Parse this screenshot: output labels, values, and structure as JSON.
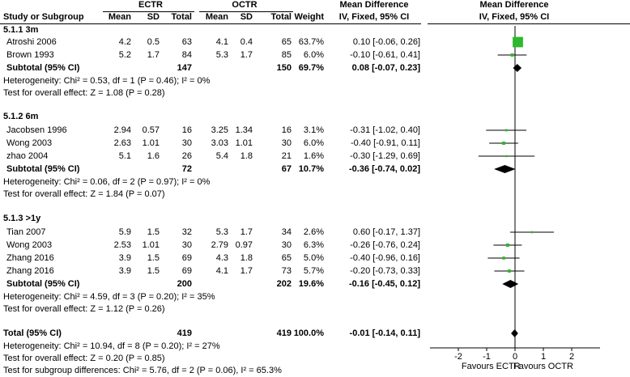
{
  "header": {
    "group1": "ECTR",
    "group2": "OCTR",
    "md_title": "Mean Difference",
    "plot_title": "Mean Difference",
    "col_study": "Study or Subgroup",
    "col_mean1": "Mean",
    "col_sd1": "SD",
    "col_total1": "Total",
    "col_mean2": "Mean",
    "col_sd2": "SD",
    "col_total2": "Total",
    "col_weight": "Weight",
    "col_ci": "IV, Fixed, 95% CI",
    "plot_ci": "IV, Fixed, 95% CI"
  },
  "groups": [
    {
      "title": "5.1.1 3m",
      "studies": [
        {
          "name": "Atroshi 2006",
          "m1": "4.2",
          "sd1": "0.5",
          "n1": "63",
          "m2": "4.1",
          "sd2": "0.4",
          "n2": "65",
          "w": "63.7%",
          "ci": "0.10 [-0.06, 0.26]"
        },
        {
          "name": "Brown 1993",
          "m1": "5.2",
          "sd1": "1.7",
          "n1": "84",
          "m2": "5.3",
          "sd2": "1.7",
          "n2": "85",
          "w": "6.0%",
          "ci": "-0.10 [-0.61, 0.41]"
        }
      ],
      "subtotal": {
        "label": "Subtotal (95% CI)",
        "n1": "147",
        "n2": "150",
        "w": "69.7%",
        "ci": "0.08 [-0.07, 0.23]"
      },
      "heterogeneity": "Heterogeneity: Chi² = 0.53, df = 1 (P = 0.46); I² = 0%",
      "overall": "Test for overall effect: Z = 1.08 (P = 0.28)"
    },
    {
      "title": "5.1.2 6m",
      "studies": [
        {
          "name": "Jacobsen 1996",
          "m1": "2.94",
          "sd1": "0.57",
          "n1": "16",
          "m2": "3.25",
          "sd2": "1.34",
          "n2": "16",
          "w": "3.1%",
          "ci": "-0.31 [-1.02, 0.40]"
        },
        {
          "name": "Wong 2003",
          "m1": "2.63",
          "sd1": "1.01",
          "n1": "30",
          "m2": "3.03",
          "sd2": "1.01",
          "n2": "30",
          "w": "6.0%",
          "ci": "-0.40 [-0.91, 0.11]"
        },
        {
          "name": "zhao 2004",
          "m1": "5.1",
          "sd1": "1.6",
          "n1": "26",
          "m2": "5.4",
          "sd2": "1.8",
          "n2": "21",
          "w": "1.6%",
          "ci": "-0.30 [-1.29, 0.69]"
        }
      ],
      "subtotal": {
        "label": "Subtotal (95% CI)",
        "n1": "72",
        "n2": "67",
        "w": "10.7%",
        "ci": "-0.36 [-0.74, 0.02]"
      },
      "heterogeneity": "Heterogeneity: Chi² = 0.06, df = 2 (P = 0.97); I² = 0%",
      "overall": "Test for overall effect: Z = 1.84 (P = 0.07)"
    },
    {
      "title": "5.1.3 >1y",
      "studies": [
        {
          "name": "Tian 2007",
          "m1": "5.9",
          "sd1": "1.5",
          "n1": "32",
          "m2": "5.3",
          "sd2": "1.7",
          "n2": "34",
          "w": "2.6%",
          "ci": "0.60 [-0.17, 1.37]"
        },
        {
          "name": "Wong 2003",
          "m1": "2.53",
          "sd1": "1.01",
          "n1": "30",
          "m2": "2.79",
          "sd2": "0.97",
          "n2": "30",
          "w": "6.3%",
          "ci": "-0.26 [-0.76, 0.24]"
        },
        {
          "name": "Zhang 2016",
          "m1": "3.9",
          "sd1": "1.5",
          "n1": "69",
          "m2": "4.3",
          "sd2": "1.8",
          "n2": "65",
          "w": "5.0%",
          "ci": "-0.40 [-0.96, 0.16]"
        },
        {
          "name": "Zhang 2016",
          "m1": "3.9",
          "sd1": "1.5",
          "n1": "69",
          "m2": "4.1",
          "sd2": "1.7",
          "n2": "73",
          "w": "5.7%",
          "ci": "-0.20 [-0.73, 0.33]"
        }
      ],
      "subtotal": {
        "label": "Subtotal (95% CI)",
        "n1": "200",
        "n2": "202",
        "w": "19.6%",
        "ci": "-0.16 [-0.45, 0.12]"
      },
      "heterogeneity": "Heterogeneity: Chi² = 4.59, df = 3 (P = 0.20); I² = 35%",
      "overall": "Test for overall effect: Z = 1.12 (P = 0.26)"
    }
  ],
  "total": {
    "label": "Total (95% CI)",
    "n1": "419",
    "n2": "419",
    "w": "100.0%",
    "ci": "-0.01 [-0.14, 0.11]"
  },
  "total_heterogeneity": "Heterogeneity: Chi² = 10.94, df = 8 (P = 0.20); I² = 27%",
  "total_overall": "Test for overall effect: Z = 0.20 (P = 0.85)",
  "subgroup_test": "Test for subgroup differences: Chi² = 5.76, df = 2 (P = 0.06), I² = 65.3%",
  "colors": {
    "study_square": "#2db82d",
    "summary_diamond": "#000000",
    "line": "#000000"
  },
  "chart_data": {
    "type": "forest",
    "xlim": [
      -3,
      3
    ],
    "ticks": [
      "-2",
      "-1",
      "0",
      "1",
      "2"
    ],
    "tick_values": [
      -2,
      -1,
      0,
      1,
      2
    ],
    "xlabel_left": "Favours ECTR",
    "xlabel_right": "Favours OCTR",
    "studies": [
      {
        "name": "Atroshi 2006",
        "md": 0.1,
        "lo": -0.06,
        "hi": 0.26,
        "weight": 63.7
      },
      {
        "name": "Brown 1993",
        "md": -0.1,
        "lo": -0.61,
        "hi": 0.41,
        "weight": 6.0
      },
      {
        "name": "Jacobsen 1996",
        "md": -0.31,
        "lo": -1.02,
        "hi": 0.4,
        "weight": 3.1
      },
      {
        "name": "Wong 2003",
        "md": -0.4,
        "lo": -0.91,
        "hi": 0.11,
        "weight": 6.0
      },
      {
        "name": "zhao 2004",
        "md": -0.3,
        "lo": -1.29,
        "hi": 0.69,
        "weight": 1.6
      },
      {
        "name": "Tian 2007",
        "md": 0.6,
        "lo": -0.17,
        "hi": 1.37,
        "weight": 2.6
      },
      {
        "name": "Wong 2003",
        "md": -0.26,
        "lo": -0.76,
        "hi": 0.24,
        "weight": 6.3
      },
      {
        "name": "Zhang 2016",
        "md": -0.4,
        "lo": -0.96,
        "hi": 0.16,
        "weight": 5.0
      },
      {
        "name": "Zhang 2016",
        "md": -0.2,
        "lo": -0.73,
        "hi": 0.33,
        "weight": 5.7
      }
    ],
    "summaries": [
      {
        "name": "Subtotal 5.1.1",
        "md": 0.08,
        "lo": -0.07,
        "hi": 0.23
      },
      {
        "name": "Subtotal 5.1.2",
        "md": -0.36,
        "lo": -0.74,
        "hi": 0.02
      },
      {
        "name": "Subtotal 5.1.3",
        "md": -0.16,
        "lo": -0.45,
        "hi": 0.12
      },
      {
        "name": "Total",
        "md": -0.01,
        "lo": -0.14,
        "hi": 0.11
      }
    ]
  }
}
